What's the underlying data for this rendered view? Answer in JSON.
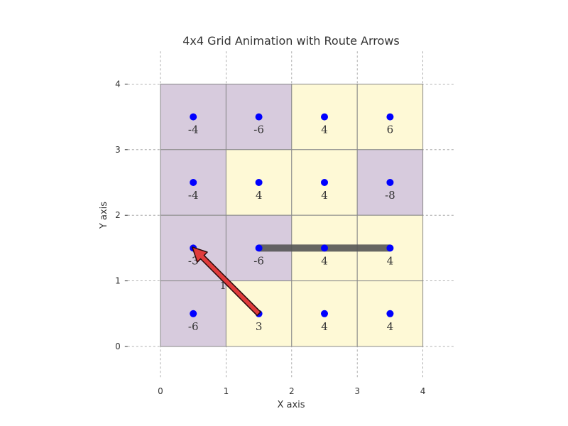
{
  "chart_data": {
    "type": "heatmap",
    "title": "4x4 Grid Animation with Route Arrows",
    "xlabel": "X axis",
    "ylabel": "Y axis",
    "xlim": [
      -0.5,
      4.5
    ],
    "ylim": [
      -0.5,
      4.5
    ],
    "xticks": [
      0,
      1,
      2,
      3,
      4
    ],
    "yticks": [
      0,
      1,
      2,
      3,
      4
    ],
    "grid": true,
    "colors": {
      "negative": "#d7cbdd",
      "positive": "#fef9d6",
      "cell_border": "#8a8a8a",
      "point": "#0000ff",
      "route_bar": "#555555",
      "arrow_fill": "#e03c3c",
      "arrow_edge": "#2a0a0a",
      "grid_line": "#999999"
    },
    "cells": [
      {
        "x": 0,
        "y": 3,
        "value": "-4"
      },
      {
        "x": 1,
        "y": 3,
        "value": "-6"
      },
      {
        "x": 2,
        "y": 3,
        "value": "4"
      },
      {
        "x": 3,
        "y": 3,
        "value": "6"
      },
      {
        "x": 0,
        "y": 2,
        "value": "-4"
      },
      {
        "x": 1,
        "y": 2,
        "value": "4"
      },
      {
        "x": 2,
        "y": 2,
        "value": "4"
      },
      {
        "x": 3,
        "y": 2,
        "value": "-8"
      },
      {
        "x": 0,
        "y": 1,
        "value": "-3"
      },
      {
        "x": 1,
        "y": 1,
        "value": "-6"
      },
      {
        "x": 2,
        "y": 1,
        "value": "4"
      },
      {
        "x": 3,
        "y": 1,
        "value": "4"
      },
      {
        "x": 0,
        "y": 0,
        "value": "-6"
      },
      {
        "x": 1,
        "y": 0,
        "value": "3"
      },
      {
        "x": 2,
        "y": 0,
        "value": "4"
      },
      {
        "x": 3,
        "y": 0,
        "value": "4"
      }
    ],
    "route_bar": {
      "from": [
        1.5,
        1.5
      ],
      "to": [
        3.5,
        1.5
      ]
    },
    "arrows": [
      {
        "from": [
          1.5,
          0.5
        ],
        "to": [
          0.5,
          1.5
        ],
        "label": "1"
      }
    ]
  }
}
